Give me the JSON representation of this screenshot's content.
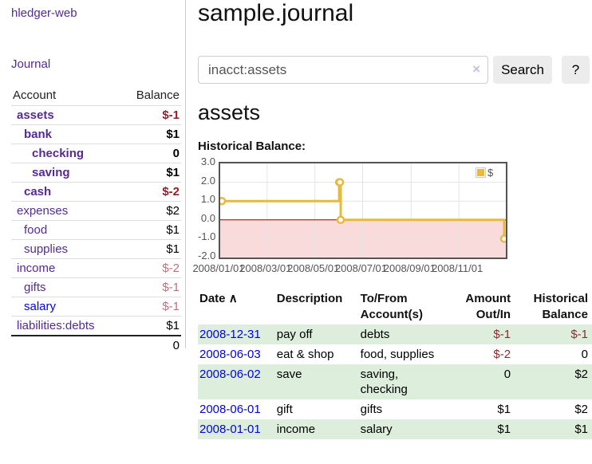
{
  "sidebar": {
    "app_title": "hledger-web",
    "journal_link": "Journal",
    "table": {
      "header_account": "Account",
      "header_balance": "Balance",
      "accounts": [
        {
          "name": "assets",
          "balance": "$-1"
        },
        {
          "name": "bank",
          "balance": "$1"
        },
        {
          "name": "checking",
          "balance": "0"
        },
        {
          "name": "saving",
          "balance": "$1"
        },
        {
          "name": "cash",
          "balance": "$-2"
        },
        {
          "name": "expenses",
          "balance": "$2"
        },
        {
          "name": "food",
          "balance": "$1"
        },
        {
          "name": "supplies",
          "balance": "$1"
        },
        {
          "name": "income",
          "balance": "$-2"
        },
        {
          "name": "gifts",
          "balance": "$-1"
        },
        {
          "name": "salary",
          "balance": "$-1"
        },
        {
          "name": "liabilities:debts",
          "balance": "$1"
        }
      ],
      "total": "0"
    }
  },
  "main": {
    "title": "sample.journal",
    "search": {
      "value": "inacct:assets",
      "clear": "×",
      "button": "Search",
      "help": "?"
    },
    "heading": "assets"
  },
  "chart_data": {
    "type": "line",
    "step": true,
    "title": "Historical Balance:",
    "series": [
      {
        "name": "$",
        "color": "#e6b93f"
      }
    ],
    "points": [
      [
        "2008-01-01",
        1
      ],
      [
        "2008-06-01",
        2
      ],
      [
        "2008-06-02",
        2
      ],
      [
        "2008-06-03",
        0
      ],
      [
        "2008-12-31",
        -1
      ]
    ],
    "xlim": [
      "2008-01-01",
      "2008-12-31"
    ],
    "ylim": [
      -2,
      3
    ],
    "yticks": [
      "3.0",
      "2.0",
      "1.0",
      "0.0",
      "-1.0",
      "-2.0"
    ],
    "xticks": [
      "2008/01/01",
      "2008/03/01",
      "2008/05/01",
      "2008/07/01",
      "2008/09/01",
      "2008/11/01"
    ],
    "grid": true,
    "legend_position": "top-right",
    "negative_region_color": "#fadbdb",
    "zero_line_color": "#8b0000",
    "grid_color": "#e4e4e4"
  },
  "transactions": {
    "headers": {
      "date": "Date",
      "sort_icon": "∧",
      "description": "Description",
      "tofrom": "To/From Account(s)",
      "amount": "Amount Out/In",
      "balance": "Historical Balance"
    },
    "rows": [
      {
        "date": "2008-12-31",
        "description": "pay off",
        "tofrom": "debts",
        "amount": "$-1",
        "balance": "$-1"
      },
      {
        "date": "2008-06-03",
        "description": "eat & shop",
        "tofrom": "food, supplies",
        "amount": "$-2",
        "balance": "0"
      },
      {
        "date": "2008-06-02",
        "description": "save",
        "tofrom": "saving,\nchecking",
        "amount": "0",
        "balance": "$2"
      },
      {
        "date": "2008-06-01",
        "description": "gift",
        "tofrom": "gifts",
        "amount": "$1",
        "balance": "$2"
      },
      {
        "date": "2008-01-01",
        "description": "income",
        "tofrom": "salary",
        "amount": "$1",
        "balance": "$1"
      }
    ]
  }
}
